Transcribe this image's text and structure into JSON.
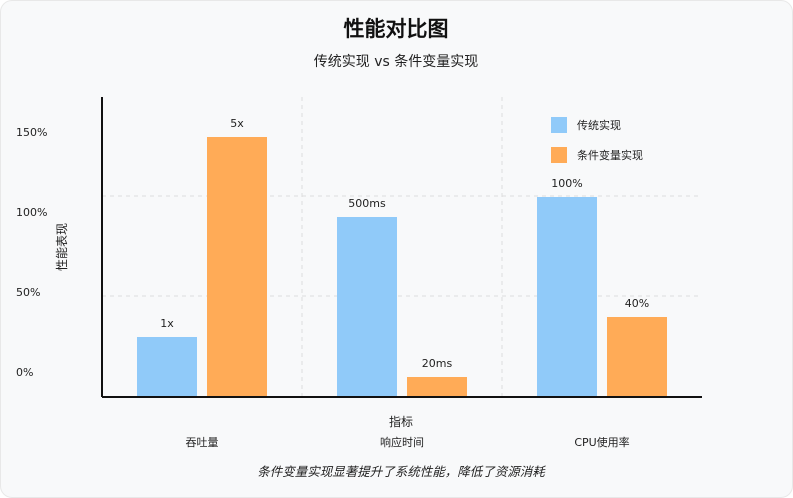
{
  "chart_data": {
    "type": "bar",
    "title": "性能对比图",
    "subtitle": "传统实现 vs 条件变量实现",
    "xlabel": "指标",
    "ylabel": "性能表现",
    "categories": [
      "吞吐量",
      "响应时间",
      "CPU使用率"
    ],
    "yticks": [
      "0%",
      "50%",
      "100%",
      "150%"
    ],
    "ylim": [
      0,
      150
    ],
    "grid": true,
    "legend_position": "top-right",
    "series": [
      {
        "name": "传统实现",
        "color": "#90caf9",
        "values": [
          30,
          90,
          100
        ],
        "labels": [
          "1x",
          "500ms",
          "100%"
        ]
      },
      {
        "name": "条件变量实现",
        "color": "#ffab57",
        "values": [
          130,
          10,
          40
        ],
        "labels": [
          "5x",
          "20ms",
          "40%"
        ]
      }
    ],
    "caption": "条件变量实现显著提升了系统性能，降低了资源消耗"
  }
}
